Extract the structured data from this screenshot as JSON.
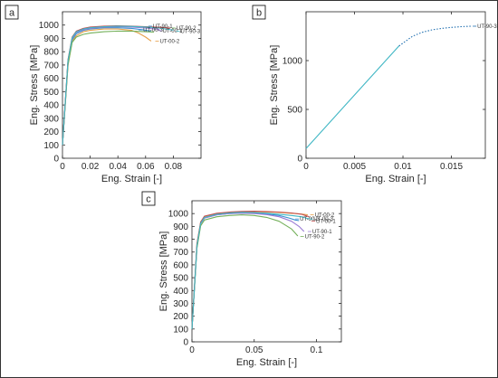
{
  "panels": [
    {
      "tag": "a"
    },
    {
      "tag": "b"
    },
    {
      "tag": "c"
    }
  ],
  "chart_data": [
    {
      "panel": "a",
      "type": "line",
      "title": "",
      "xlabel": "Eng. Strain [-]",
      "ylabel": "Eng. Stress [MPa]",
      "xlim": [
        0,
        0.1
      ],
      "ylim": [
        0,
        1100
      ],
      "xticks": [
        0,
        0.02,
        0.04,
        0.06,
        0.08
      ],
      "xtick_labels": [
        "0",
        "0.02",
        "0.04",
        "0.06",
        "0.08"
      ],
      "yticks": [
        0,
        100,
        200,
        300,
        400,
        500,
        600,
        700,
        800,
        900,
        1000
      ],
      "ytick_labels": [
        "0",
        "100",
        "200",
        "300",
        "400",
        "500",
        "600",
        "700",
        "800",
        "900",
        "1000"
      ],
      "grid": false,
      "series": [
        {
          "color": "#e6a04a",
          "x": [
            0,
            0.004,
            0.007,
            0.01,
            0.015,
            0.02,
            0.03,
            0.04,
            0.05,
            0.055,
            0.06,
            0.064
          ],
          "y": [
            100,
            700,
            880,
            920,
            950,
            960,
            970,
            970,
            960,
            940,
            910,
            880
          ]
        },
        {
          "color": "#3a8fd0",
          "x": [
            0,
            0.004,
            0.007,
            0.01,
            0.015,
            0.02,
            0.03,
            0.04,
            0.05,
            0.058,
            0.064
          ],
          "y": [
            100,
            720,
            890,
            935,
            960,
            970,
            980,
            980,
            975,
            965,
            955
          ]
        },
        {
          "color": "#9b7bd4",
          "x": [
            0,
            0.004,
            0.007,
            0.01,
            0.015,
            0.02,
            0.03,
            0.04,
            0.05,
            0.06,
            0.066,
            0.07
          ],
          "y": [
            100,
            730,
            900,
            945,
            965,
            975,
            985,
            988,
            985,
            978,
            972,
            968
          ]
        },
        {
          "color": "#74b05a",
          "x": [
            0,
            0.004,
            0.007,
            0.01,
            0.015,
            0.02,
            0.03,
            0.04,
            0.05,
            0.06,
            0.066
          ],
          "y": [
            100,
            700,
            870,
            910,
            930,
            940,
            950,
            955,
            955,
            950,
            948
          ]
        },
        {
          "color": "#c24e4e",
          "x": [
            0,
            0.004,
            0.007,
            0.01,
            0.015,
            0.02,
            0.03,
            0.04,
            0.05,
            0.06,
            0.07,
            0.078
          ],
          "y": [
            100,
            740,
            910,
            955,
            975,
            985,
            992,
            995,
            992,
            988,
            983,
            978
          ]
        },
        {
          "color": "#3fb6c4",
          "x": [
            0,
            0.004,
            0.007,
            0.01,
            0.015,
            0.02,
            0.03,
            0.04,
            0.05,
            0.06,
            0.07,
            0.08
          ],
          "y": [
            100,
            735,
            905,
            950,
            970,
            980,
            988,
            992,
            990,
            985,
            978,
            962
          ]
        }
      ],
      "annotations": [
        {
          "text": "UT-90-1",
          "x": 0.062,
          "y": 992,
          "color": "#3a8fd0"
        },
        {
          "text": "UT-90-2",
          "x": 0.079,
          "y": 978,
          "color": "#74b05a"
        },
        {
          "text": "UT-00-3",
          "x": 0.055,
          "y": 963,
          "color": "#3a8fd0"
        },
        {
          "text": "UT-00-1",
          "x": 0.069,
          "y": 958,
          "color": "#9b7bd4"
        },
        {
          "text": "UT-90-3",
          "x": 0.082,
          "y": 955,
          "color": "#3fb6c4"
        },
        {
          "text": "UT-00-2",
          "x": 0.067,
          "y": 880,
          "color": "#e6a04a"
        }
      ]
    },
    {
      "panel": "b",
      "type": "line",
      "title": "",
      "xlabel": "Eng. Strain [-]",
      "ylabel": "Eng. Stress [MPa]",
      "xlim": [
        0,
        0.0185
      ],
      "ylim": [
        0,
        1500
      ],
      "xticks": [
        0,
        0.005,
        0.01,
        0.015
      ],
      "xtick_labels": [
        "0",
        "0.005",
        "0.01",
        "0.015"
      ],
      "yticks": [
        0,
        500,
        1000
      ],
      "ytick_labels": [
        "0",
        "500",
        "1000"
      ],
      "grid": false,
      "series": [
        {
          "color": "#3fb6c4",
          "style": "solid",
          "x": [
            0,
            0.0096
          ],
          "y": [
            100,
            1150
          ]
        },
        {
          "color": "#1f6fb0",
          "style": "dotted",
          "x": [
            0.0096,
            0.011,
            0.012,
            0.013,
            0.014,
            0.015,
            0.016,
            0.017
          ],
          "y": [
            1150,
            1250,
            1290,
            1315,
            1330,
            1340,
            1347,
            1352
          ]
        }
      ],
      "annotations": [
        {
          "text": "UT-90-3",
          "x": 0.0172,
          "y": 1352,
          "color": "#1f6fb0"
        }
      ]
    },
    {
      "panel": "c",
      "type": "line",
      "title": "",
      "xlabel": "Eng. Strain [-]",
      "ylabel": "Eng. Stress [MPa]",
      "xlim": [
        0,
        0.12
      ],
      "ylim": [
        0,
        1100
      ],
      "xticks": [
        0,
        0.05,
        0.1
      ],
      "xtick_labels": [
        "0",
        "0.05",
        "0.1"
      ],
      "yticks": [
        0,
        100,
        200,
        300,
        400,
        500,
        600,
        700,
        800,
        900,
        1000
      ],
      "ytick_labels": [
        "0",
        "100",
        "200",
        "300",
        "400",
        "500",
        "600",
        "700",
        "800",
        "900",
        "1000"
      ],
      "grid": false,
      "series": [
        {
          "color": "#e6a04a",
          "x": [
            0,
            0.004,
            0.007,
            0.01,
            0.02,
            0.03,
            0.04,
            0.05,
            0.06,
            0.07,
            0.08,
            0.087,
            0.093
          ],
          "y": [
            100,
            760,
            930,
            975,
            1000,
            1010,
            1015,
            1015,
            1012,
            1008,
            1002,
            998,
            990
          ]
        },
        {
          "color": "#3a8fd0",
          "x": [
            0,
            0.004,
            0.007,
            0.01,
            0.02,
            0.03,
            0.04,
            0.05,
            0.06,
            0.07,
            0.078,
            0.083,
            0.086
          ],
          "y": [
            100,
            740,
            920,
            965,
            990,
            1000,
            1005,
            1003,
            997,
            985,
            965,
            950,
            945
          ]
        },
        {
          "color": "#9b7bd4",
          "x": [
            0,
            0.004,
            0.007,
            0.01,
            0.02,
            0.03,
            0.04,
            0.05,
            0.06,
            0.07,
            0.08,
            0.086,
            0.09
          ],
          "y": [
            100,
            745,
            920,
            965,
            990,
            1000,
            1003,
            1000,
            992,
            975,
            940,
            900,
            860
          ]
        },
        {
          "color": "#74b05a",
          "x": [
            0,
            0.004,
            0.007,
            0.01,
            0.02,
            0.03,
            0.04,
            0.05,
            0.06,
            0.07,
            0.08,
            0.085
          ],
          "y": [
            100,
            730,
            905,
            950,
            975,
            985,
            990,
            985,
            970,
            940,
            880,
            825
          ]
        },
        {
          "color": "#c24e4e",
          "x": [
            0,
            0.004,
            0.007,
            0.01,
            0.02,
            0.03,
            0.04,
            0.05,
            0.06,
            0.07,
            0.08,
            0.088,
            0.094
          ],
          "y": [
            100,
            765,
            935,
            980,
            1003,
            1012,
            1017,
            1018,
            1016,
            1012,
            1005,
            995,
            975
          ]
        },
        {
          "color": "#3fb6c4",
          "x": [
            0,
            0.004,
            0.007,
            0.01,
            0.02,
            0.03,
            0.04,
            0.05,
            0.06,
            0.07,
            0.08,
            0.088,
            0.094
          ],
          "y": [
            100,
            750,
            925,
            970,
            995,
            1005,
            1010,
            1008,
            1003,
            995,
            985,
            975,
            958
          ]
        }
      ],
      "annotations": [
        {
          "text": "UT-00-2",
          "x": 0.095,
          "y": 990,
          "color": "#e6a04a"
        },
        {
          "text": "UT-90-3",
          "x": 0.083,
          "y": 958,
          "color": "#3a8fd0"
        },
        {
          "text": "UT-00-3",
          "x": 0.094,
          "y": 958,
          "color": "#3fb6c4"
        },
        {
          "text": "UT-00-1",
          "x": 0.096,
          "y": 940,
          "color": "#c24e4e"
        },
        {
          "text": "UT-90-1",
          "x": 0.093,
          "y": 860,
          "color": "#9b7bd4"
        },
        {
          "text": "UT-90-2",
          "x": 0.087,
          "y": 822,
          "color": "#74b05a"
        }
      ]
    }
  ]
}
